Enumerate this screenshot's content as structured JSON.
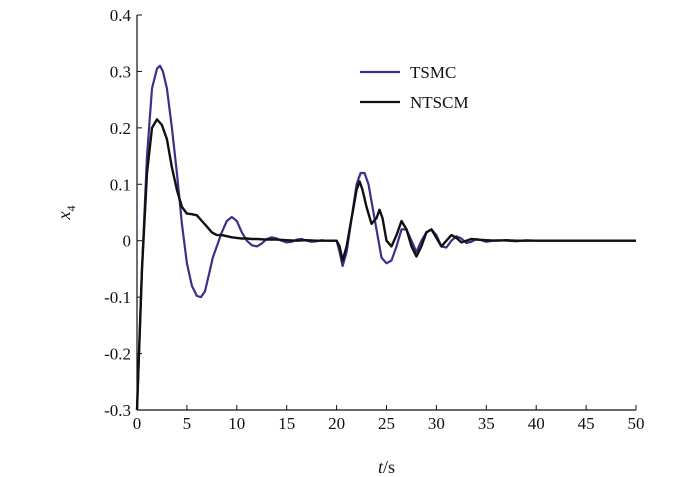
{
  "chart_data": {
    "type": "line",
    "title": "",
    "xlabel": "t/s",
    "ylabel": "x4",
    "xlim": [
      0,
      50
    ],
    "ylim": [
      -0.3,
      0.4
    ],
    "xticks": [
      0,
      5,
      10,
      15,
      20,
      25,
      30,
      35,
      40,
      45,
      50
    ],
    "yticks": [
      -0.3,
      -0.2,
      -0.1,
      0,
      0.1,
      0.2,
      0.3,
      0.4
    ],
    "xtick_labels": [
      "0",
      "5",
      "10",
      "15",
      "20",
      "25",
      "30",
      "35",
      "40",
      "45",
      "50"
    ],
    "ytick_labels": [
      "-0.3",
      "-0.2",
      "-0.1",
      "0",
      "0.1",
      "0.2",
      "0.3",
      "0.4"
    ],
    "grid": false,
    "legend_position": "top-right",
    "series": [
      {
        "name": "TSMC",
        "color": "#3d2f8a",
        "x": [
          0,
          0.5,
          1,
          1.5,
          2,
          2.3,
          2.6,
          3,
          3.5,
          4,
          4.5,
          5,
          5.5,
          6,
          6.4,
          6.8,
          7.2,
          7.6,
          8,
          8.5,
          9,
          9.5,
          10,
          10.5,
          11,
          11.5,
          12,
          12.5,
          13,
          13.5,
          14,
          14.5,
          15,
          15.5,
          16,
          16.5,
          17,
          17.5,
          18,
          18.5,
          19,
          19.5,
          20,
          20.3,
          20.6,
          21,
          21.5,
          22,
          22.4,
          22.8,
          23.2,
          23.6,
          24,
          24.5,
          25,
          25.5,
          26,
          26.5,
          27,
          27.5,
          28,
          28.5,
          29,
          29.5,
          30,
          30.5,
          31,
          31.5,
          32,
          32.5,
          33,
          33.5,
          34,
          34.5,
          35,
          36,
          37,
          38,
          39,
          40,
          41,
          42,
          43,
          44,
          45,
          46,
          47,
          48,
          49,
          50
        ],
        "y": [
          -0.3,
          -0.05,
          0.15,
          0.27,
          0.305,
          0.31,
          0.3,
          0.27,
          0.2,
          0.12,
          0.03,
          -0.04,
          -0.08,
          -0.098,
          -0.1,
          -0.09,
          -0.06,
          -0.03,
          -0.01,
          0.015,
          0.035,
          0.042,
          0.035,
          0.015,
          0.0,
          -0.008,
          -0.01,
          -0.005,
          0.003,
          0.006,
          0.004,
          0.0,
          -0.003,
          -0.002,
          0.002,
          0.003,
          0.0,
          -0.002,
          -0.001,
          0.001,
          0.0,
          0.0,
          0.0,
          -0.02,
          -0.045,
          -0.02,
          0.04,
          0.1,
          0.12,
          0.12,
          0.1,
          0.06,
          0.02,
          -0.03,
          -0.04,
          -0.035,
          -0.01,
          0.02,
          0.02,
          0.0,
          -0.02,
          0.0,
          0.015,
          0.02,
          0.01,
          -0.01,
          -0.012,
          0.0,
          0.008,
          0.004,
          -0.004,
          -0.002,
          0.003,
          0.001,
          -0.002,
          0.001,
          0.0,
          -0.001,
          0.001,
          0.0,
          0.0,
          0.0,
          0.0,
          0.0,
          0.0,
          0.0,
          0.0,
          0.0,
          0.0,
          0.0
        ]
      },
      {
        "name": "NTSCM",
        "color": "#111111",
        "x": [
          0,
          0.5,
          1,
          1.5,
          2,
          2.5,
          3,
          3.5,
          4,
          4.5,
          5,
          5.5,
          6,
          6.5,
          7,
          7.5,
          8,
          8.5,
          9,
          9.5,
          10,
          10.5,
          11,
          11.5,
          12,
          13,
          14,
          15,
          16,
          17,
          18,
          19,
          20,
          20.3,
          20.6,
          21,
          21.5,
          22,
          22.3,
          22.6,
          23,
          23.5,
          24,
          24.3,
          24.6,
          25,
          25.5,
          26,
          26.5,
          27,
          27.5,
          28,
          28.5,
          29,
          29.5,
          30,
          30.5,
          31,
          31.5,
          32,
          32.5,
          33,
          33.5,
          34,
          35,
          36,
          37,
          38,
          39,
          40,
          41,
          42,
          43,
          44,
          45,
          46,
          47,
          48,
          49,
          50
        ],
        "y": [
          -0.3,
          -0.05,
          0.12,
          0.2,
          0.215,
          0.205,
          0.18,
          0.13,
          0.09,
          0.06,
          0.048,
          0.047,
          0.045,
          0.035,
          0.025,
          0.015,
          0.01,
          0.01,
          0.008,
          0.006,
          0.005,
          0.004,
          0.004,
          0.003,
          0.003,
          0.002,
          0.002,
          0.001,
          0.0,
          0.001,
          0.0,
          0.0,
          0.0,
          -0.01,
          -0.035,
          -0.01,
          0.04,
          0.09,
          0.105,
          0.09,
          0.06,
          0.03,
          0.04,
          0.055,
          0.04,
          0.0,
          -0.01,
          0.01,
          0.035,
          0.02,
          -0.01,
          -0.028,
          -0.01,
          0.015,
          0.02,
          0.005,
          -0.01,
          0.0,
          0.01,
          0.005,
          -0.003,
          0.0,
          0.003,
          0.002,
          0.001,
          0.0,
          0.001,
          0.0,
          0.0,
          0.0,
          0.0,
          0.0,
          0.0,
          0.0,
          0.0,
          0.0,
          0.0,
          0.0,
          0.0,
          0.0
        ]
      }
    ]
  }
}
